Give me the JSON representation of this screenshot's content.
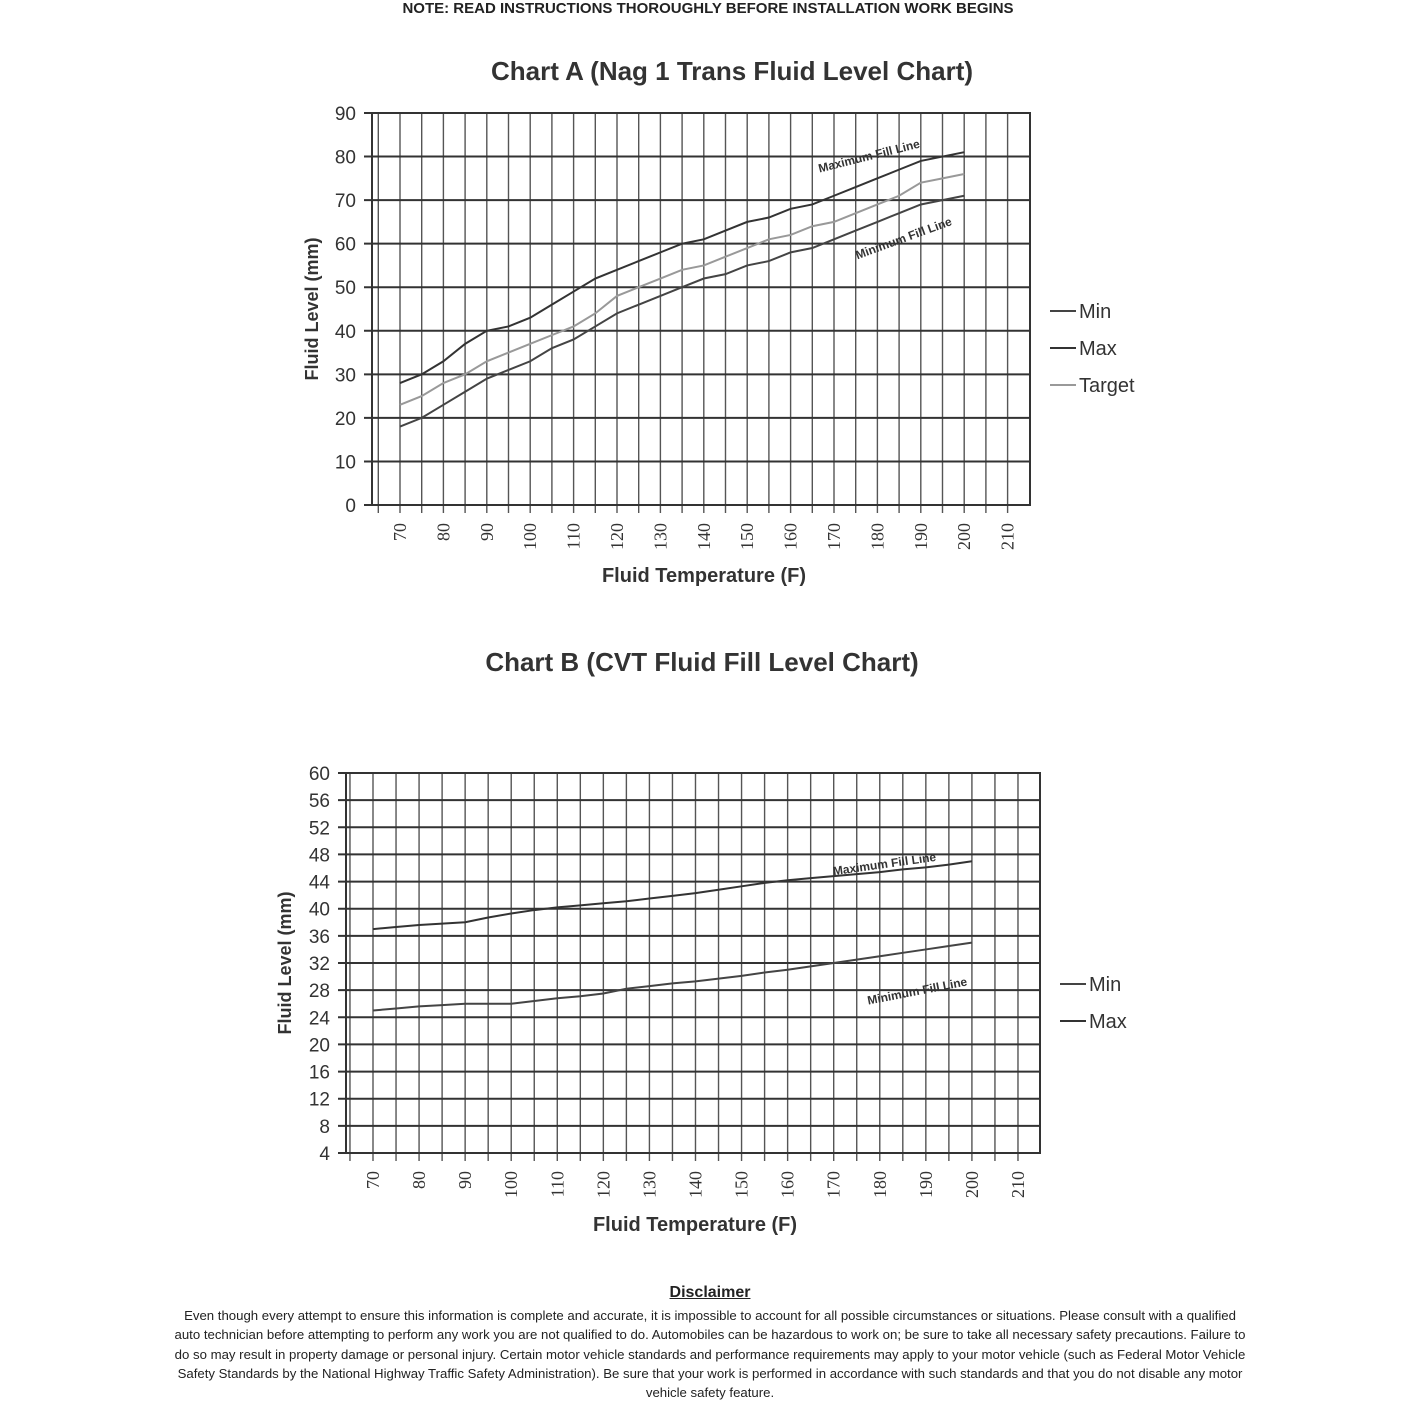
{
  "note": "NOTE: READ INSTRUCTIONS THOROUGHLY BEFORE INSTALLATION WORK BEGINS",
  "chart_data": [
    {
      "type": "line",
      "title": "Chart A (Nag 1 Trans Fluid Level Chart)",
      "xlabel": "Fluid Temperature (F)",
      "ylabel": "Fluid Level (mm)",
      "xlim": [
        70,
        210
      ],
      "ylim": [
        0,
        90
      ],
      "x_ticks": [
        70,
        80,
        90,
        100,
        110,
        120,
        130,
        140,
        150,
        160,
        170,
        180,
        190,
        200,
        210
      ],
      "y_ticks": [
        0,
        10,
        20,
        30,
        40,
        50,
        60,
        70,
        80,
        90
      ],
      "grid": true,
      "legend_position": "right",
      "x": [
        70,
        75,
        80,
        85,
        90,
        95,
        100,
        105,
        110,
        115,
        120,
        125,
        130,
        135,
        140,
        145,
        150,
        155,
        160,
        165,
        170,
        175,
        180,
        185,
        190,
        195,
        200
      ],
      "series": [
        {
          "name": "Min",
          "color": "#444444",
          "values": [
            18,
            20,
            23,
            26,
            29,
            31,
            33,
            36,
            38,
            41,
            44,
            46,
            48,
            50,
            52,
            53,
            55,
            56,
            58,
            59,
            61,
            63,
            65,
            67,
            69,
            70,
            71
          ]
        },
        {
          "name": "Max",
          "color": "#333333",
          "values": [
            28,
            30,
            33,
            37,
            40,
            41,
            43,
            46,
            49,
            52,
            54,
            56,
            58,
            60,
            61,
            63,
            65,
            66,
            68,
            69,
            71,
            73,
            75,
            77,
            79,
            80,
            81
          ]
        },
        {
          "name": "Target",
          "color": "#999999",
          "values": [
            23,
            25,
            28,
            30,
            33,
            35,
            37,
            39,
            41,
            44,
            48,
            50,
            52,
            54,
            55,
            57,
            59,
            61,
            62,
            64,
            65,
            67,
            69,
            71,
            74,
            75,
            76
          ]
        }
      ],
      "annotations": [
        "Maximum Fill Line",
        "Minimum Fill Line"
      ]
    },
    {
      "type": "line",
      "title": "Chart B (CVT Fluid Fill Level Chart)",
      "xlabel": "Fluid Temperature (F)",
      "ylabel": "Fluid Level (mm)",
      "xlim": [
        70,
        210
      ],
      "ylim": [
        4,
        60
      ],
      "x_ticks": [
        70,
        80,
        90,
        100,
        110,
        120,
        130,
        140,
        150,
        160,
        170,
        180,
        190,
        200,
        210
      ],
      "y_ticks": [
        4,
        8,
        12,
        16,
        20,
        24,
        28,
        32,
        36,
        40,
        44,
        48,
        52,
        56,
        60
      ],
      "grid": true,
      "legend_position": "right",
      "x": [
        70,
        75,
        80,
        85,
        90,
        95,
        100,
        105,
        110,
        115,
        120,
        125,
        130,
        135,
        140,
        145,
        150,
        155,
        160,
        165,
        170,
        175,
        180,
        185,
        190,
        195,
        200
      ],
      "series": [
        {
          "name": "Min",
          "color": "#444444",
          "values": [
            25,
            25.3,
            25.6,
            25.8,
            26,
            26,
            26,
            26.4,
            26.8,
            27.1,
            27.5,
            28.2,
            28.6,
            29,
            29.3,
            29.7,
            30.1,
            30.6,
            31,
            31.5,
            32,
            32.5,
            33,
            33.5,
            34,
            34.5,
            35
          ]
        },
        {
          "name": "Max",
          "color": "#333333",
          "values": [
            37,
            37.3,
            37.6,
            37.8,
            38,
            38.7,
            39.3,
            39.8,
            40.2,
            40.5,
            40.8,
            41.1,
            41.5,
            41.9,
            42.3,
            42.8,
            43.3,
            43.8,
            44.2,
            44.5,
            44.8,
            45.1,
            45.4,
            45.8,
            46.1,
            46.5,
            47
          ]
        }
      ],
      "annotations": [
        "Maximum Fill Line",
        "Minimum Fill Line"
      ]
    }
  ],
  "disclaimer": {
    "title": "Disclaimer",
    "text": "Even though every attempt to ensure this information is complete and accurate, it is impossible to account for all possible circumstances or situations.  Please consult with a qualified auto technician before attempting to perform any work you are not qualified to do.  Automobiles can be hazardous to work on; be sure to take all necessary safety precautions.  Failure to do so may result in property damage or personal injury.  Certain motor vehicle standards and performance requirements may apply to your motor vehicle (such as Federal Motor Vehicle Safety Standards by the National Highway Traffic Safety Administration).  Be sure that your work is performed in accordance with such standards and that you do not disable any motor vehicle safety feature."
  }
}
